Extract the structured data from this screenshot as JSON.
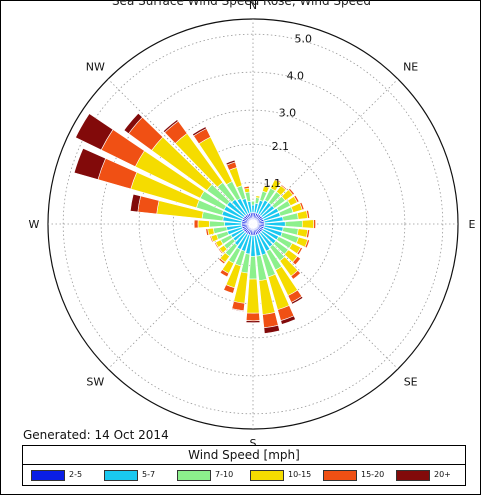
{
  "figure": {
    "title": "Sea Surface Wind Speed Rose, Wind Speed"
  },
  "generated": "Generated: 14 Oct 2014",
  "legend": {
    "title": "Wind Speed [mph]",
    "items": [
      {
        "label": "2-5",
        "color": "#0a1ee6"
      },
      {
        "label": "5-7",
        "color": "#19c8f0"
      },
      {
        "label": "7-10",
        "color": "#8cf08c"
      },
      {
        "label": "10-15",
        "color": "#f5dc00"
      },
      {
        "label": "15-20",
        "color": "#f05014"
      },
      {
        "label": "20+",
        "color": "#820a0a"
      }
    ]
  },
  "chart_data": {
    "type": "wind-rose",
    "radial_unit": "frequency (%)",
    "radial_ticks": [
      1.1,
      2.1,
      3.0,
      4.0,
      5.0
    ],
    "radial_tick_labels": [
      "1.1",
      "2.1",
      "3.0",
      "4.0",
      "5.0"
    ],
    "rmax": 5.4,
    "direction_labels": [
      "N",
      "NE",
      "E",
      "SE",
      "S",
      "SW",
      "W",
      "NW"
    ],
    "sector_count": 36,
    "sector_width_deg": 10,
    "speed_bins": [
      "2-5",
      "5-7",
      "7-10",
      "10-15",
      "15-20",
      "20+"
    ],
    "gridlines": true,
    "sectors": [
      {
        "dir": 0,
        "values": [
          0.3,
          0.2,
          0.1,
          0.0,
          0.0,
          0.0
        ]
      },
      {
        "dir": 10,
        "values": [
          0.3,
          0.25,
          0.15,
          0.05,
          0.0,
          0.0
        ]
      },
      {
        "dir": 20,
        "values": [
          0.3,
          0.35,
          0.25,
          0.15,
          0.02,
          0.0
        ]
      },
      {
        "dir": 30,
        "values": [
          0.3,
          0.4,
          0.35,
          0.25,
          0.03,
          0.0
        ]
      },
      {
        "dir": 40,
        "values": [
          0.3,
          0.4,
          0.35,
          0.2,
          0.03,
          0.0
        ]
      },
      {
        "dir": 50,
        "values": [
          0.3,
          0.4,
          0.35,
          0.25,
          0.05,
          0.0
        ]
      },
      {
        "dir": 60,
        "values": [
          0.3,
          0.45,
          0.35,
          0.2,
          0.05,
          0.0
        ]
      },
      {
        "dir": 70,
        "values": [
          0.3,
          0.45,
          0.35,
          0.25,
          0.05,
          0.0
        ]
      },
      {
        "dir": 80,
        "values": [
          0.3,
          0.5,
          0.4,
          0.25,
          0.05,
          0.0
        ]
      },
      {
        "dir": 90,
        "values": [
          0.3,
          0.55,
          0.45,
          0.3,
          0.05,
          0.0
        ]
      },
      {
        "dir": 100,
        "values": [
          0.3,
          0.5,
          0.4,
          0.25,
          0.05,
          0.0
        ]
      },
      {
        "dir": 110,
        "values": [
          0.3,
          0.5,
          0.45,
          0.25,
          0.05,
          0.0
        ]
      },
      {
        "dir": 120,
        "values": [
          0.3,
          0.45,
          0.4,
          0.25,
          0.05,
          0.0
        ]
      },
      {
        "dir": 130,
        "values": [
          0.3,
          0.45,
          0.4,
          0.3,
          0.1,
          0.0
        ]
      },
      {
        "dir": 140,
        "values": [
          0.3,
          0.45,
          0.45,
          0.5,
          0.1,
          0.0
        ]
      },
      {
        "dir": 150,
        "values": [
          0.3,
          0.5,
          0.55,
          0.75,
          0.2,
          0.05
        ]
      },
      {
        "dir": 160,
        "values": [
          0.3,
          0.55,
          0.6,
          0.9,
          0.3,
          0.1
        ]
      },
      {
        "dir": 170,
        "values": [
          0.3,
          0.55,
          0.65,
          0.9,
          0.35,
          0.15
        ]
      },
      {
        "dir": 180,
        "values": [
          0.3,
          0.55,
          0.6,
          0.9,
          0.2,
          0.05
        ]
      },
      {
        "dir": 190,
        "values": [
          0.3,
          0.5,
          0.5,
          0.8,
          0.2,
          0.02
        ]
      },
      {
        "dir": 200,
        "values": [
          0.3,
          0.45,
          0.4,
          0.6,
          0.15,
          0.0
        ]
      },
      {
        "dir": 210,
        "values": [
          0.3,
          0.45,
          0.4,
          0.3,
          0.1,
          0.0
        ]
      },
      {
        "dir": 220,
        "values": [
          0.3,
          0.4,
          0.35,
          0.2,
          0.05,
          0.0
        ]
      },
      {
        "dir": 230,
        "values": [
          0.3,
          0.35,
          0.3,
          0.15,
          0.03,
          0.0
        ]
      },
      {
        "dir": 240,
        "values": [
          0.3,
          0.35,
          0.3,
          0.15,
          0.03,
          0.0
        ]
      },
      {
        "dir": 250,
        "values": [
          0.3,
          0.4,
          0.3,
          0.15,
          0.03,
          0.0
        ]
      },
      {
        "dir": 260,
        "values": [
          0.3,
          0.4,
          0.35,
          0.15,
          0.05,
          0.0
        ]
      },
      {
        "dir": 270,
        "values": [
          0.3,
          0.45,
          0.4,
          0.3,
          0.1,
          0.0
        ]
      },
      {
        "dir": 280,
        "values": [
          0.3,
          0.5,
          0.55,
          1.2,
          0.5,
          0.2
        ]
      },
      {
        "dir": 290,
        "values": [
          0.3,
          0.55,
          0.7,
          1.8,
          0.9,
          0.65
        ]
      },
      {
        "dir": 300,
        "values": [
          0.3,
          0.55,
          0.7,
          1.9,
          1.0,
          0.75
        ]
      },
      {
        "dir": 310,
        "values": [
          0.3,
          0.55,
          0.65,
          1.8,
          0.75,
          0.15
        ]
      },
      {
        "dir": 320,
        "values": [
          0.3,
          0.5,
          0.55,
          1.6,
          0.4,
          0.05
        ]
      },
      {
        "dir": 330,
        "values": [
          0.3,
          0.45,
          0.5,
          1.3,
          0.25,
          0.05
        ]
      },
      {
        "dir": 340,
        "values": [
          0.3,
          0.4,
          0.35,
          0.5,
          0.15,
          0.05
        ]
      },
      {
        "dir": 350,
        "values": [
          0.3,
          0.3,
          0.25,
          0.1,
          0.05,
          0.0
        ]
      }
    ]
  }
}
